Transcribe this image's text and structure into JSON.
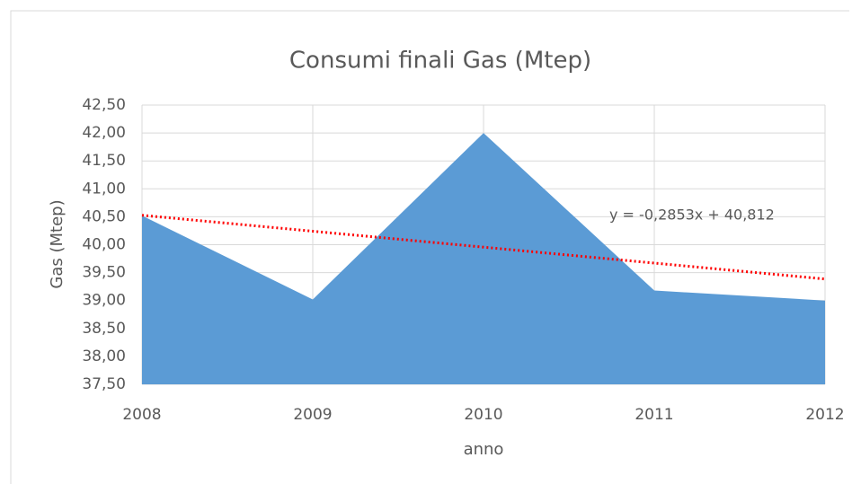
{
  "chart_data": {
    "type": "area",
    "title": "Consumi  finali Gas (Mtep)",
    "y_label": "Gas  (Mtep)",
    "x_label": "anno",
    "categories": [
      "2008",
      "2009",
      "2010",
      "2011",
      "2012"
    ],
    "values": [
      40.52,
      39.02,
      42.0,
      39.18,
      39.0
    ],
    "color": "#5b9bd5",
    "ylim": [
      37.5,
      42.5
    ],
    "yticks": [
      {
        "value": 37.5,
        "label": "37,50"
      },
      {
        "value": 38,
        "label": "38,00"
      },
      {
        "value": 38.5,
        "label": "38,50"
      },
      {
        "value": 39,
        "label": "39,00"
      },
      {
        "value": 39.5,
        "label": "39,50"
      },
      {
        "value": 40,
        "label": "40,00"
      },
      {
        "value": 40.5,
        "label": "40,50"
      },
      {
        "value": 41,
        "label": "41,00"
      },
      {
        "value": 41.5,
        "label": "41,50"
      },
      {
        "value": 42,
        "label": "42,00"
      },
      {
        "value": 42.5,
        "label": "42,50"
      }
    ],
    "grid": true,
    "trendline": {
      "label": "y = -0,2853x + 40,812",
      "slope": -0.2853,
      "intercept": 40.812,
      "color": "#ff0000"
    }
  }
}
